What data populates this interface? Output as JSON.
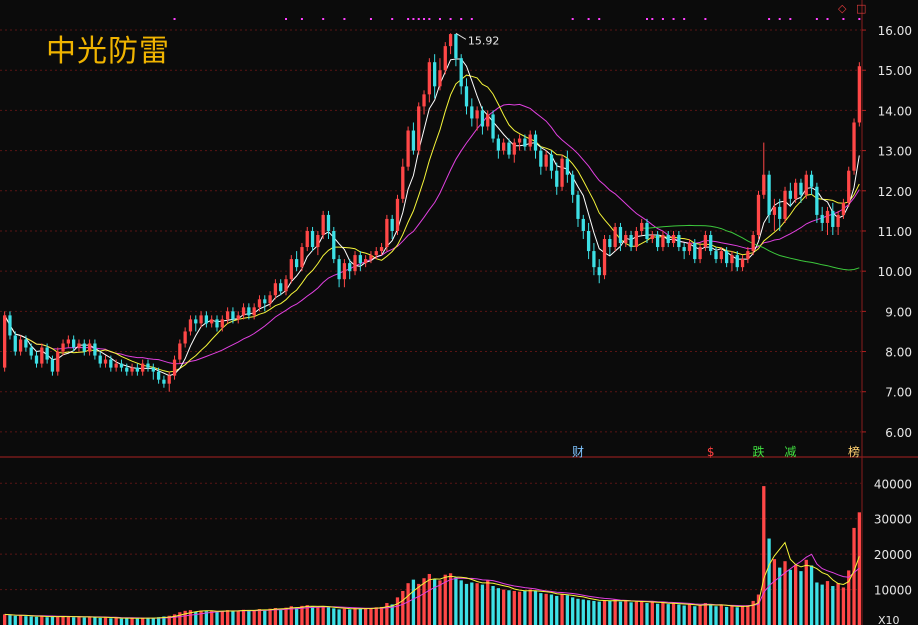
{
  "stock": {
    "name": "中光防雷",
    "high_marker": "15.92"
  },
  "toolbar": {
    "diamond_icon": "◇",
    "window_icon": "□"
  },
  "colors": {
    "up": "#ff4747",
    "down": "#3de0e6",
    "ma5": "#ffffff",
    "ma10": "#f5f53a",
    "ma20": "#e040e0",
    "ma60": "#3cc83c",
    "grid": "#5a1515",
    "axis_text": "#e8e8e8"
  },
  "event_tags": [
    {
      "label": "财",
      "index": 108,
      "color": "#7fc4ff"
    },
    {
      "label": "$",
      "index": 133,
      "color": "#ff4040"
    },
    {
      "label": "跌",
      "index": 142,
      "color": "#40e040"
    },
    {
      "label": "减",
      "index": 148,
      "color": "#40e040"
    },
    {
      "label": "榜",
      "index": 160,
      "color": "#ffd070"
    }
  ],
  "top_markers": [
    32,
    53,
    56,
    60,
    64,
    69,
    73,
    76,
    77,
    78,
    79,
    80,
    82,
    84,
    86,
    88,
    107,
    110,
    112,
    121,
    122,
    124,
    126,
    128,
    132,
    144,
    146,
    148,
    153,
    155,
    158,
    161
  ],
  "chart_data": [
    {
      "type": "candlestick",
      "name": "price",
      "ylim": [
        5.5,
        16.3
      ],
      "yticks": [
        6.0,
        7.0,
        8.0,
        9.0,
        10.0,
        11.0,
        12.0,
        13.0,
        14.0,
        15.0,
        16.0
      ],
      "ytick_labels": [
        "6.00",
        "7.00",
        "8.00",
        "9.00",
        "10.00",
        "11.00",
        "12.00",
        "13.00",
        "14.00",
        "15.00",
        "16.00"
      ],
      "annotation": {
        "label": "15.92",
        "index": 85,
        "value": 15.92
      },
      "candles": [
        [
          7.6,
          8.9,
          9.0,
          7.5
        ],
        [
          8.9,
          8.4,
          9.0,
          8.3
        ],
        [
          8.4,
          8.0,
          8.5,
          7.9
        ],
        [
          8.0,
          8.3,
          8.4,
          7.9
        ],
        [
          8.3,
          8.1,
          8.4,
          8.0
        ],
        [
          8.1,
          7.9,
          8.2,
          7.8
        ],
        [
          7.9,
          7.7,
          8.0,
          7.6
        ],
        [
          7.7,
          8.1,
          8.2,
          7.6
        ],
        [
          8.1,
          7.8,
          8.2,
          7.7
        ],
        [
          7.8,
          7.5,
          7.9,
          7.4
        ],
        [
          7.5,
          8.0,
          8.1,
          7.4
        ],
        [
          8.0,
          8.2,
          8.3,
          7.9
        ],
        [
          8.2,
          8.3,
          8.4,
          8.1
        ],
        [
          8.3,
          8.1,
          8.4,
          8.0
        ],
        [
          8.1,
          8.2,
          8.3,
          8.0
        ],
        [
          8.2,
          8.0,
          8.3,
          7.9
        ],
        [
          8.0,
          8.2,
          8.3,
          7.9
        ],
        [
          8.2,
          7.9,
          8.3,
          7.8
        ],
        [
          7.9,
          7.7,
          8.0,
          7.6
        ],
        [
          7.7,
          7.8,
          7.9,
          7.6
        ],
        [
          7.8,
          7.6,
          7.9,
          7.5
        ],
        [
          7.6,
          7.7,
          7.8,
          7.5
        ],
        [
          7.7,
          7.6,
          7.8,
          7.5
        ],
        [
          7.6,
          7.5,
          7.7,
          7.4
        ],
        [
          7.5,
          7.6,
          7.7,
          7.4
        ],
        [
          7.6,
          7.5,
          7.7,
          7.4
        ],
        [
          7.5,
          7.7,
          7.8,
          7.4
        ],
        [
          7.7,
          7.6,
          7.8,
          7.5
        ],
        [
          7.6,
          7.5,
          7.7,
          7.3
        ],
        [
          7.5,
          7.3,
          7.6,
          7.2
        ],
        [
          7.3,
          7.2,
          7.4,
          7.1
        ],
        [
          7.2,
          7.4,
          7.5,
          7.0
        ],
        [
          7.4,
          7.8,
          7.9,
          7.3
        ],
        [
          7.8,
          8.2,
          8.3,
          7.7
        ],
        [
          8.2,
          8.5,
          8.6,
          8.1
        ],
        [
          8.5,
          8.8,
          8.9,
          8.4
        ],
        [
          8.8,
          8.7,
          8.9,
          8.5
        ],
        [
          8.7,
          8.9,
          9.0,
          8.6
        ],
        [
          8.9,
          8.7,
          9.0,
          8.6
        ],
        [
          8.7,
          8.8,
          8.9,
          8.6
        ],
        [
          8.8,
          8.6,
          8.9,
          8.5
        ],
        [
          8.6,
          8.8,
          8.9,
          8.5
        ],
        [
          8.8,
          9.0,
          9.1,
          8.7
        ],
        [
          9.0,
          8.8,
          9.1,
          8.7
        ],
        [
          8.8,
          8.9,
          9.0,
          8.7
        ],
        [
          8.9,
          9.1,
          9.2,
          8.8
        ],
        [
          9.1,
          8.9,
          9.2,
          8.8
        ],
        [
          8.9,
          9.1,
          9.2,
          8.8
        ],
        [
          9.1,
          9.3,
          9.4,
          9.0
        ],
        [
          9.3,
          9.2,
          9.4,
          9.0
        ],
        [
          9.2,
          9.4,
          9.5,
          9.1
        ],
        [
          9.4,
          9.7,
          9.8,
          9.3
        ],
        [
          9.7,
          9.5,
          9.8,
          9.4
        ],
        [
          9.5,
          9.8,
          9.9,
          9.4
        ],
        [
          9.8,
          10.3,
          10.4,
          9.7
        ],
        [
          10.3,
          10.1,
          10.5,
          10.0
        ],
        [
          10.1,
          10.6,
          10.7,
          10.0
        ],
        [
          10.6,
          11.0,
          11.1,
          10.5
        ],
        [
          11.0,
          10.6,
          11.1,
          10.5
        ],
        [
          10.6,
          10.9,
          11.0,
          10.4
        ],
        [
          10.9,
          11.4,
          11.5,
          10.8
        ],
        [
          11.4,
          11.0,
          11.5,
          10.8
        ],
        [
          11.0,
          10.3,
          11.1,
          10.2
        ],
        [
          10.3,
          9.8,
          10.4,
          9.6
        ],
        [
          9.8,
          10.2,
          10.3,
          9.6
        ],
        [
          10.2,
          10.0,
          10.3,
          9.8
        ],
        [
          10.0,
          10.4,
          10.5,
          9.9
        ],
        [
          10.4,
          10.2,
          10.5,
          10.0
        ],
        [
          10.2,
          10.3,
          10.4,
          10.1
        ],
        [
          10.3,
          10.4,
          10.5,
          10.2
        ],
        [
          10.4,
          10.5,
          10.6,
          10.3
        ],
        [
          10.5,
          10.6,
          10.7,
          10.4
        ],
        [
          10.6,
          11.3,
          11.4,
          10.5
        ],
        [
          11.3,
          11.0,
          11.4,
          10.8
        ],
        [
          11.0,
          11.8,
          11.9,
          10.9
        ],
        [
          11.8,
          12.6,
          12.8,
          11.7
        ],
        [
          12.6,
          13.5,
          13.6,
          12.5
        ],
        [
          13.5,
          13.0,
          13.7,
          12.9
        ],
        [
          13.0,
          14.1,
          14.2,
          12.9
        ],
        [
          14.1,
          14.4,
          14.5,
          13.9
        ],
        [
          14.4,
          15.2,
          15.3,
          14.2
        ],
        [
          15.2,
          14.6,
          15.4,
          14.3
        ],
        [
          14.6,
          15.0,
          15.3,
          14.5
        ],
        [
          15.0,
          15.6,
          15.7,
          14.9
        ],
        [
          15.6,
          15.9,
          15.92,
          15.4
        ],
        [
          15.9,
          15.3,
          15.9,
          15.1
        ],
        [
          15.3,
          14.6,
          15.4,
          14.4
        ],
        [
          14.6,
          14.1,
          14.8,
          13.9
        ],
        [
          14.1,
          13.8,
          14.3,
          13.6
        ],
        [
          13.8,
          14.0,
          14.1,
          13.5
        ],
        [
          14.0,
          13.6,
          14.1,
          13.4
        ],
        [
          13.6,
          13.9,
          14.0,
          13.5
        ],
        [
          13.9,
          13.3,
          14.0,
          13.2
        ],
        [
          13.3,
          13.0,
          13.4,
          12.8
        ],
        [
          13.0,
          13.2,
          13.3,
          12.9
        ],
        [
          13.2,
          12.9,
          13.3,
          12.8
        ],
        [
          12.9,
          13.2,
          13.3,
          12.7
        ],
        [
          13.2,
          13.3,
          13.4,
          13.0
        ],
        [
          13.3,
          13.1,
          13.4,
          13.0
        ],
        [
          13.1,
          13.4,
          13.5,
          13.0
        ],
        [
          13.4,
          13.0,
          13.5,
          12.8
        ],
        [
          13.0,
          12.6,
          13.1,
          12.4
        ],
        [
          12.6,
          12.9,
          13.0,
          12.5
        ],
        [
          12.9,
          12.5,
          13.0,
          12.3
        ],
        [
          12.5,
          12.1,
          12.7,
          11.9
        ],
        [
          12.1,
          12.8,
          12.9,
          12.0
        ],
        [
          12.8,
          12.4,
          13.0,
          12.2
        ],
        [
          12.4,
          11.9,
          12.5,
          11.7
        ],
        [
          11.9,
          11.3,
          12.0,
          11.1
        ],
        [
          11.3,
          11.0,
          11.4,
          10.8
        ],
        [
          11.0,
          10.5,
          11.2,
          10.3
        ],
        [
          10.5,
          10.1,
          10.7,
          9.9
        ],
        [
          10.1,
          9.9,
          10.3,
          9.7
        ],
        [
          9.9,
          10.8,
          10.9,
          9.8
        ],
        [
          10.8,
          10.6,
          10.9,
          10.4
        ],
        [
          10.6,
          11.1,
          11.2,
          10.5
        ],
        [
          11.1,
          10.7,
          11.2,
          10.5
        ],
        [
          10.7,
          10.9,
          11.0,
          10.6
        ],
        [
          10.9,
          10.6,
          11.0,
          10.5
        ],
        [
          10.6,
          11.0,
          11.1,
          10.5
        ],
        [
          11.0,
          11.2,
          11.3,
          10.9
        ],
        [
          11.2,
          10.8,
          11.3,
          10.7
        ],
        [
          10.8,
          10.9,
          11.0,
          10.7
        ],
        [
          10.9,
          10.6,
          11.0,
          10.5
        ],
        [
          10.6,
          10.9,
          11.0,
          10.5
        ],
        [
          10.9,
          10.7,
          11.0,
          10.6
        ],
        [
          10.7,
          10.9,
          11.0,
          10.6
        ],
        [
          10.9,
          10.6,
          11.0,
          10.5
        ],
        [
          10.6,
          10.5,
          10.7,
          10.3
        ],
        [
          10.5,
          10.7,
          10.8,
          10.4
        ],
        [
          10.7,
          10.3,
          10.8,
          10.2
        ],
        [
          10.3,
          10.6,
          10.7,
          10.2
        ],
        [
          10.6,
          10.9,
          11.0,
          10.5
        ],
        [
          10.9,
          10.5,
          11.0,
          10.4
        ],
        [
          10.5,
          10.3,
          10.6,
          10.2
        ],
        [
          10.3,
          10.5,
          10.6,
          10.2
        ],
        [
          10.5,
          10.2,
          10.6,
          10.1
        ],
        [
          10.2,
          10.4,
          10.5,
          10.0
        ],
        [
          10.4,
          10.1,
          10.5,
          10.0
        ],
        [
          10.1,
          10.3,
          10.4,
          10.0
        ],
        [
          10.3,
          10.5,
          10.6,
          10.2
        ],
        [
          10.5,
          10.9,
          11.0,
          10.4
        ],
        [
          10.9,
          11.9,
          12.0,
          10.8
        ],
        [
          11.9,
          12.4,
          13.2,
          11.8
        ],
        [
          12.4,
          11.4,
          12.5,
          11.2
        ],
        [
          11.4,
          11.6,
          11.8,
          11.0
        ],
        [
          11.6,
          11.3,
          11.8,
          11.0
        ],
        [
          11.3,
          12.0,
          12.1,
          11.2
        ],
        [
          12.0,
          11.8,
          12.2,
          11.6
        ],
        [
          11.8,
          12.2,
          12.3,
          11.7
        ],
        [
          12.2,
          11.9,
          12.3,
          11.7
        ],
        [
          11.9,
          12.4,
          12.5,
          11.8
        ],
        [
          12.4,
          12.1,
          12.5,
          11.9
        ],
        [
          12.1,
          11.4,
          12.2,
          11.2
        ],
        [
          11.4,
          11.2,
          11.6,
          11.0
        ],
        [
          11.2,
          11.5,
          11.6,
          10.9
        ],
        [
          11.5,
          11.1,
          11.7,
          10.9
        ],
        [
          11.1,
          11.4,
          11.5,
          10.9
        ],
        [
          11.4,
          11.7,
          11.8,
          11.3
        ],
        [
          11.7,
          12.5,
          12.6,
          11.6
        ],
        [
          12.5,
          13.7,
          13.8,
          12.4
        ],
        [
          13.7,
          15.1,
          15.2,
          13.6
        ]
      ]
    },
    {
      "type": "bar",
      "name": "volume",
      "ylim": [
        0,
        46000
      ],
      "yticks": [
        10000,
        20000,
        30000,
        40000
      ],
      "ytick_labels": [
        "10000",
        "20000",
        "30000",
        "40000"
      ],
      "unit_label": "X10",
      "values": [
        3000,
        2800,
        2600,
        2700,
        2500,
        2400,
        2300,
        2600,
        2200,
        2400,
        2300,
        2500,
        2400,
        2200,
        2300,
        2100,
        2400,
        2200,
        2000,
        2100,
        1900,
        2000,
        1800,
        1900,
        2000,
        1800,
        2100,
        1900,
        2000,
        2200,
        2400,
        2600,
        3000,
        3600,
        4000,
        4200,
        3800,
        4100,
        3900,
        4000,
        3700,
        3900,
        4200,
        4000,
        4100,
        4300,
        4000,
        4200,
        4500,
        4300,
        4600,
        4800,
        4500,
        4900,
        5300,
        5000,
        5400,
        5600,
        5200,
        5000,
        5200,
        5000,
        4700,
        4400,
        4600,
        4400,
        4800,
        4600,
        4700,
        4800,
        5000,
        5100,
        6200,
        5800,
        7800,
        9600,
        11800,
        12800,
        11600,
        13200,
        14400,
        13000,
        12600,
        14200,
        14600,
        13400,
        12600,
        11600,
        12000,
        11800,
        11400,
        12600,
        11000,
        10400,
        10000,
        9800,
        9600,
        9400,
        9600,
        10000,
        9600,
        9000,
        8800,
        8600,
        8200,
        8800,
        8400,
        7800,
        7400,
        7200,
        7000,
        6800,
        6600,
        7000,
        6800,
        7200,
        6600,
        6800,
        6400,
        6600,
        6800,
        6200,
        6400,
        6000,
        6300,
        5900,
        6200,
        5800,
        5500,
        5800,
        5300,
        5600,
        6200,
        5700,
        5300,
        5500,
        5100,
        5400,
        5000,
        5300,
        5600,
        6800,
        8600,
        39200,
        24400,
        18600,
        16200,
        18000,
        15600,
        17000,
        15200,
        18400,
        16800,
        12000,
        11400,
        12400,
        11000,
        11800,
        10600,
        15400,
        27400,
        31800
      ]
    }
  ]
}
